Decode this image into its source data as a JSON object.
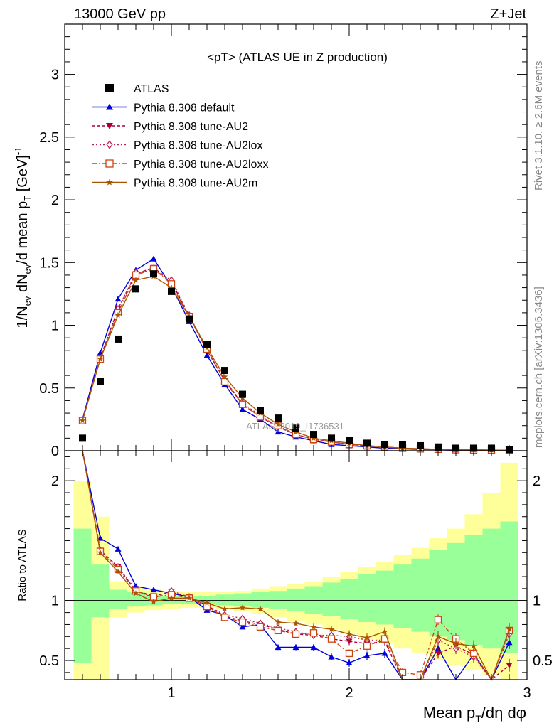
{
  "header": {
    "left": "13000 GeV pp",
    "right": "Z+Jet"
  },
  "side_labels": {
    "rivet": "Rivet 3.1.10, ≥ 2.6M events",
    "mcplots": "mcplots.cern.ch [arXiv:1306.3436]"
  },
  "watermark": "ATLAS_2019_I1736531",
  "chart_data": [
    {
      "type": "scatter",
      "title": "<pT> (ATLAS UE in Z production)",
      "ylabel": "1/N_ev dN_ev/d mean p_T [GeV]^-1",
      "xlim": [
        0.4,
        3.0
      ],
      "ylim": [
        0,
        3.4
      ],
      "x_ticks": [
        1,
        2,
        3
      ],
      "y_ticks": [
        0,
        0.5,
        1,
        1.5,
        2,
        2.5,
        3
      ],
      "legend": "top-left",
      "x": [
        0.5,
        0.6,
        0.7,
        0.8,
        0.9,
        1.0,
        1.1,
        1.2,
        1.3,
        1.4,
        1.5,
        1.6,
        1.7,
        1.8,
        1.9,
        2.0,
        2.1,
        2.2,
        2.3,
        2.4,
        2.5,
        2.6,
        2.7,
        2.8,
        2.9
      ],
      "series": [
        {
          "name": "ATLAS",
          "color": "#000000",
          "marker": "square",
          "values": [
            0.1,
            0.55,
            0.89,
            1.29,
            1.41,
            1.27,
            1.05,
            0.85,
            0.64,
            0.45,
            0.32,
            0.26,
            0.18,
            0.13,
            0.1,
            0.08,
            0.06,
            0.05,
            0.05,
            0.04,
            0.03,
            0.02,
            0.02,
            0.02,
            0.01
          ]
        },
        {
          "name": "Pythia 8.308 default",
          "color": "#0000dd",
          "marker": "triangle-up",
          "dash": "",
          "values": [
            0.25,
            0.78,
            1.21,
            1.44,
            1.53,
            1.31,
            1.03,
            0.76,
            0.53,
            0.33,
            0.25,
            0.15,
            0.11,
            0.08,
            0.05,
            0.04,
            0.03,
            0.02,
            0.015,
            0.01,
            0.01,
            0.006,
            0.005,
            0.004,
            0.004
          ]
        },
        {
          "name": "Pythia 8.308 tune-AU2",
          "color": "#aa0033",
          "marker": "triangle-down",
          "dash": "4,3",
          "values": [
            0.24,
            0.74,
            1.13,
            1.41,
            1.46,
            1.35,
            1.07,
            0.8,
            0.56,
            0.37,
            0.27,
            0.19,
            0.13,
            0.09,
            0.07,
            0.05,
            0.04,
            0.03,
            0.02,
            0.015,
            0.01,
            0.008,
            0.006,
            0.005,
            0.004
          ]
        },
        {
          "name": "Pythia 8.308 tune-AU2lox",
          "color": "#bb2255",
          "marker": "diamond-open",
          "dash": "2,3",
          "values": [
            0.24,
            0.74,
            1.13,
            1.42,
            1.44,
            1.36,
            1.08,
            0.81,
            0.56,
            0.38,
            0.28,
            0.19,
            0.13,
            0.09,
            0.07,
            0.05,
            0.04,
            0.03,
            0.02,
            0.015,
            0.012,
            0.008,
            0.006,
            0.005,
            0.004
          ]
        },
        {
          "name": "Pythia 8.308 tune-AU2loxx",
          "color": "#cc4411",
          "marker": "square-open",
          "dash": "6,3,2,3",
          "values": [
            0.24,
            0.73,
            1.1,
            1.4,
            1.45,
            1.33,
            1.07,
            0.81,
            0.55,
            0.37,
            0.27,
            0.2,
            0.13,
            0.09,
            0.07,
            0.05,
            0.04,
            0.03,
            0.02,
            0.015,
            0.012,
            0.008,
            0.006,
            0.005,
            0.004
          ]
        },
        {
          "name": "Pythia 8.308 tune-AU2m",
          "color": "#aa5500",
          "marker": "star",
          "dash": "",
          "values": [
            0.24,
            0.73,
            1.08,
            1.36,
            1.39,
            1.3,
            1.07,
            0.82,
            0.59,
            0.42,
            0.3,
            0.21,
            0.15,
            0.1,
            0.08,
            0.06,
            0.04,
            0.03,
            0.02,
            0.016,
            0.012,
            0.009,
            0.007,
            0.005,
            0.004
          ]
        }
      ]
    },
    {
      "type": "line",
      "title": "",
      "xlabel": "Mean p_T/dη dφ",
      "ylabel": "Ratio to ATLAS",
      "xlim": [
        0.4,
        3.0
      ],
      "ylim": [
        0.34,
        2.25
      ],
      "x_ticks": [
        1,
        2,
        3
      ],
      "y_ticks": [
        0.5,
        1,
        2
      ],
      "reference_line": 1,
      "x": [
        0.5,
        0.6,
        0.7,
        0.8,
        0.9,
        1.0,
        1.1,
        1.2,
        1.3,
        1.4,
        1.5,
        1.6,
        1.7,
        1.8,
        1.9,
        2.0,
        2.1,
        2.2,
        2.3,
        2.4,
        2.5,
        2.6,
        2.7,
        2.8,
        2.9
      ],
      "bands": {
        "edges": [
          0.45,
          0.55,
          0.65,
          0.75,
          0.85,
          0.95,
          1.05,
          1.15,
          1.25,
          1.35,
          1.45,
          1.55,
          1.65,
          1.75,
          1.85,
          1.95,
          2.05,
          2.15,
          2.25,
          2.35,
          2.45,
          2.55,
          2.65,
          2.75,
          2.85,
          2.95
        ],
        "yellow_color": "#ffff99",
        "green_color": "#99ff99",
        "yellow_lo": [
          0.3,
          0.3,
          0.86,
          0.9,
          0.92,
          0.93,
          0.94,
          0.94,
          0.93,
          0.91,
          0.89,
          0.86,
          0.83,
          0.8,
          0.76,
          0.72,
          0.68,
          0.64,
          0.6,
          0.56,
          0.5,
          0.46,
          0.42,
          0.38,
          0.34
        ],
        "yellow_hi": [
          2.0,
          1.7,
          1.16,
          1.12,
          1.1,
          1.08,
          1.07,
          1.07,
          1.07,
          1.08,
          1.1,
          1.12,
          1.14,
          1.16,
          1.2,
          1.24,
          1.28,
          1.32,
          1.38,
          1.44,
          1.52,
          1.6,
          1.72,
          1.9,
          2.15
        ],
        "green_lo": [
          0.48,
          0.86,
          0.93,
          0.95,
          0.96,
          0.97,
          0.97,
          0.97,
          0.96,
          0.95,
          0.94,
          0.93,
          0.91,
          0.89,
          0.87,
          0.85,
          0.82,
          0.8,
          0.77,
          0.74,
          0.7,
          0.67,
          0.63,
          0.6,
          0.56
        ],
        "green_hi": [
          1.6,
          1.3,
          1.09,
          1.07,
          1.05,
          1.04,
          1.04,
          1.04,
          1.05,
          1.06,
          1.07,
          1.08,
          1.1,
          1.12,
          1.15,
          1.18,
          1.22,
          1.25,
          1.3,
          1.35,
          1.42,
          1.48,
          1.55,
          1.6,
          1.66
        ]
      },
      "series": [
        {
          "name": "Pythia 8.308 default",
          "color": "#0000dd",
          "values": [
            2.5,
            1.52,
            1.43,
            1.12,
            1.09,
            1.06,
            1.03,
            0.92,
            0.88,
            0.78,
            0.8,
            0.61,
            0.61,
            0.61,
            0.53,
            0.48,
            0.54,
            0.56,
            0.2,
            0.2,
            0.6,
            0.2,
            0.55,
            0.2,
            0.65
          ]
        },
        {
          "name": "Pythia 8.308 tune-AU2",
          "color": "#aa0033",
          "values": [
            2.4,
            1.42,
            1.28,
            1.08,
            1.04,
            1.07,
            1.03,
            0.96,
            0.87,
            0.83,
            0.8,
            0.76,
            0.72,
            0.71,
            0.68,
            0.66,
            0.64,
            0.66,
            0.2,
            0.2,
            0.56,
            0.62,
            0.55,
            0.2,
            0.46
          ]
        },
        {
          "name": "Pythia 8.308 tune-AU2lox",
          "color": "#bb2255",
          "values": [
            2.4,
            1.42,
            1.28,
            1.09,
            1.02,
            1.08,
            1.03,
            0.96,
            0.88,
            0.85,
            0.81,
            0.77,
            0.74,
            0.71,
            0.71,
            0.7,
            0.67,
            0.67,
            0.2,
            0.2,
            0.67,
            0.6,
            0.53,
            0.2,
            0.72
          ]
        },
        {
          "name": "Pythia 8.308 tune-AU2loxx",
          "color": "#cc4411",
          "values": [
            2.4,
            1.41,
            1.26,
            1.08,
            1.03,
            1.05,
            1.02,
            0.95,
            0.86,
            0.82,
            0.78,
            0.75,
            0.72,
            0.73,
            0.68,
            0.56,
            0.62,
            0.68,
            0.4,
            0.38,
            0.84,
            0.68,
            0.56,
            0.2,
            0.75
          ]
        },
        {
          "name": "Pythia 8.308 tune-AU2m",
          "color": "#aa5500",
          "values": [
            2.4,
            1.4,
            1.24,
            1.06,
            0.99,
            1.02,
            1.02,
            0.98,
            0.93,
            0.94,
            0.93,
            0.82,
            0.81,
            0.78,
            0.76,
            0.72,
            0.69,
            0.74,
            0.2,
            0.2,
            0.7,
            0.64,
            0.62,
            0.2,
            0.76
          ]
        }
      ]
    }
  ]
}
